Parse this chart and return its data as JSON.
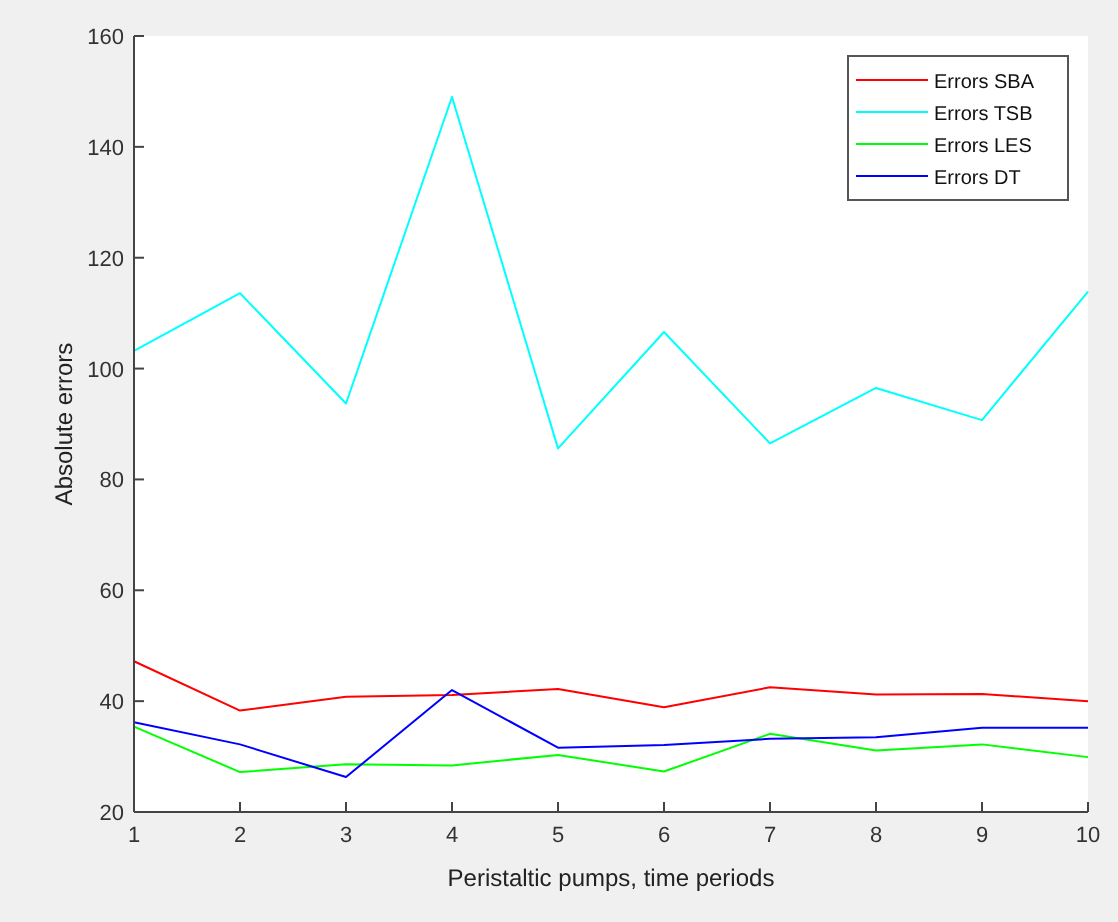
{
  "chart_data": {
    "type": "line",
    "xlabel": "Peristaltic pumps, time periods",
    "ylabel": "Absolute errors",
    "x": [
      1,
      2,
      3,
      4,
      5,
      6,
      7,
      8,
      9,
      10
    ],
    "xlim": [
      1,
      10
    ],
    "xticks": [
      1,
      2,
      3,
      4,
      5,
      6,
      7,
      8,
      9,
      10
    ],
    "ylim": [
      20,
      160
    ],
    "yticks": [
      20,
      40,
      60,
      80,
      100,
      120,
      140,
      160
    ],
    "legend": "top right",
    "grid": false,
    "marker": "none",
    "series": [
      {
        "name": "Errors SBA",
        "color": "#ff0000",
        "values": [
          47.2,
          38.3,
          40.8,
          41.1,
          42.2,
          38.9,
          42.5,
          41.2,
          41.3,
          40
        ]
      },
      {
        "name": "Errors TSB",
        "color": "#00ffff",
        "values": [
          103.2,
          113.6,
          93.7,
          149,
          85.6,
          106.6,
          86.5,
          96.5,
          90.7,
          113.9
        ]
      },
      {
        "name": "Errors LES",
        "color": "#00ff00",
        "values": [
          35.4,
          27.2,
          28.6,
          28.4,
          30.3,
          27.3,
          34.1,
          31.1,
          32.2,
          29.9
        ]
      },
      {
        "name": "Errors DT",
        "color": "#0000ff",
        "values": [
          36.2,
          32.2,
          26.3,
          42,
          31.6,
          32.1,
          33.2,
          33.5,
          35.2,
          35.2
        ]
      }
    ]
  }
}
